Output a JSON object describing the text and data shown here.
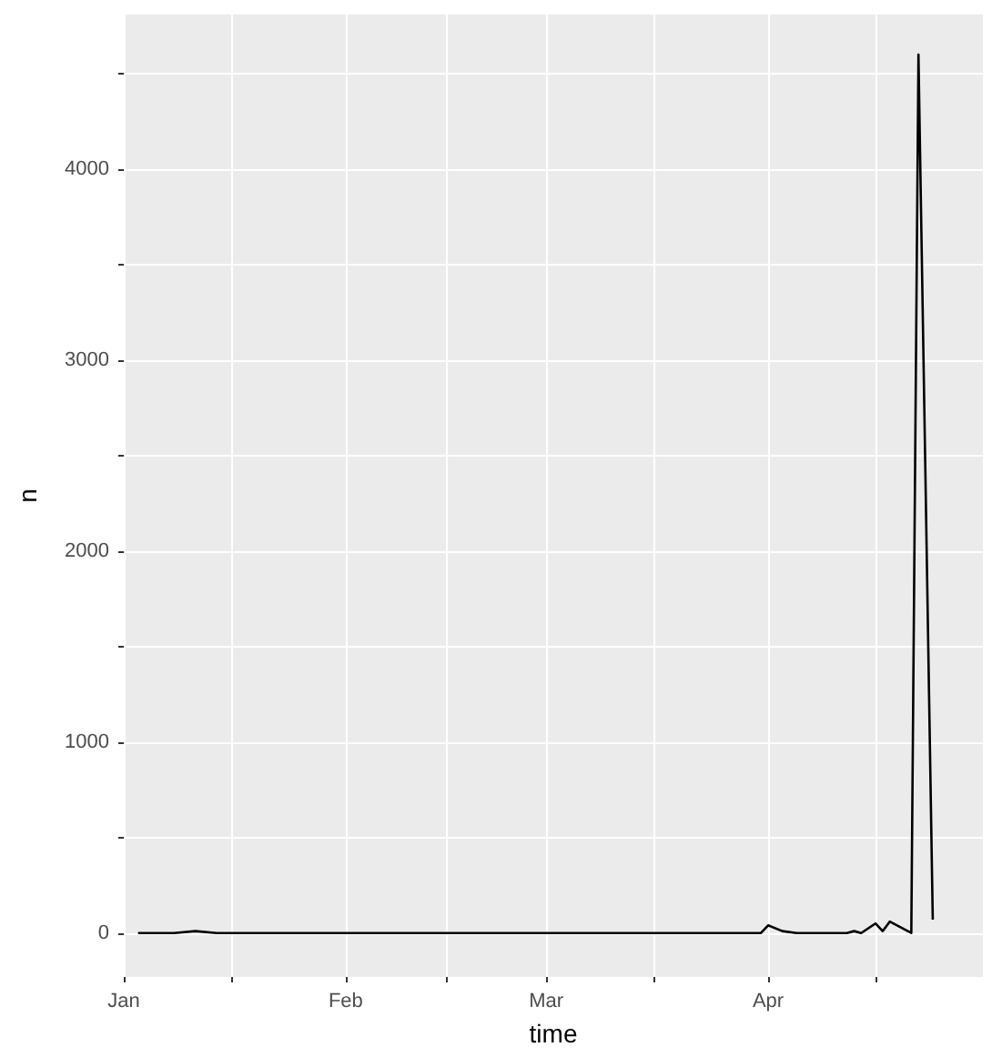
{
  "chart_data": {
    "type": "line",
    "xlabel": "time",
    "ylabel": "n",
    "grid": true,
    "marker": "none",
    "line_style": "solid",
    "x": [
      "--01-03",
      "--01-08",
      "--01-11",
      "--01-14",
      "--01-25",
      "--02-15",
      "--03-15",
      "--03-31",
      "--04-01",
      "--04-03",
      "--04-05",
      "--04-12",
      "--04-13",
      "--04-14",
      "--04-16",
      "--04-17",
      "--04-18",
      "--04-21",
      "--04-22",
      "--04-24"
    ],
    "series": [
      {
        "color": "#000000",
        "values": [
          0,
          0,
          10,
          0,
          0,
          0,
          0,
          0,
          40,
          10,
          0,
          0,
          10,
          0,
          50,
          10,
          60,
          0,
          4600,
          70
        ]
      }
    ],
    "xlim": [
      "--01-01",
      "--05-01"
    ],
    "xticks": [
      {
        "value": "--01-01",
        "label": "Jan"
      },
      {
        "value": "--01-16",
        "label": null
      },
      {
        "value": "--02-01",
        "label": "Feb"
      },
      {
        "value": "--02-15",
        "label": null
      },
      {
        "value": "--03-01",
        "label": "Mar"
      },
      {
        "value": "--03-16",
        "label": null
      },
      {
        "value": "--04-01",
        "label": "Apr"
      },
      {
        "value": "--04-16",
        "label": null
      }
    ],
    "ylim": [
      -230,
      4810
    ],
    "yticks": [
      0,
      {
        "value": 500,
        "label": null
      },
      1000,
      {
        "value": 1500,
        "label": null
      },
      2000,
      {
        "value": 2500,
        "label": null
      },
      3000,
      {
        "value": 3500,
        "label": null
      },
      4000,
      {
        "value": 4500,
        "label": null
      }
    ]
  }
}
